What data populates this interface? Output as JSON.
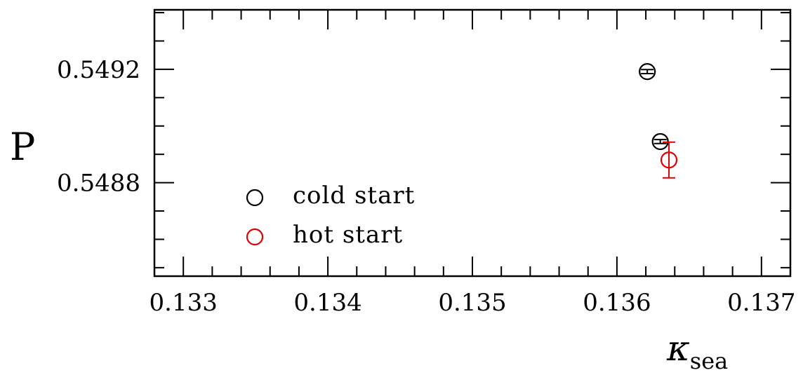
{
  "chart_data": {
    "type": "scatter",
    "title": "",
    "xlabel": "κ",
    "xlabel_subscript": "sea",
    "ylabel": "P",
    "xlim": [
      0.1328,
      0.1372
    ],
    "ylim": [
      0.54847,
      0.54941
    ],
    "x_ticks": [
      0.133,
      0.134,
      0.135,
      0.136,
      0.137
    ],
    "x_tick_labels": [
      "0.133",
      "0.134",
      "0.135",
      "0.136",
      "0.137"
    ],
    "x_minor_step": 0.0002,
    "y_ticks": [
      0.5488,
      0.5492
    ],
    "y_tick_labels": [
      "0.5488",
      "0.5492"
    ],
    "y_minor_step": 0.0001,
    "grid": false,
    "legend_position": "lower-left",
    "series": [
      {
        "name": "cold start",
        "color": "#000000",
        "marker": "open-circle",
        "points": [
          {
            "x": 0.13621,
            "y": 0.549192,
            "err": 7e-06
          },
          {
            "x": 0.1363,
            "y": 0.548945,
            "err": 7e-06
          }
        ]
      },
      {
        "name": "hot start",
        "color": "#e00000",
        "marker": "open-circle",
        "points": [
          {
            "x": 0.13636,
            "y": 0.54888,
            "err": 6.3e-05
          }
        ]
      }
    ]
  }
}
